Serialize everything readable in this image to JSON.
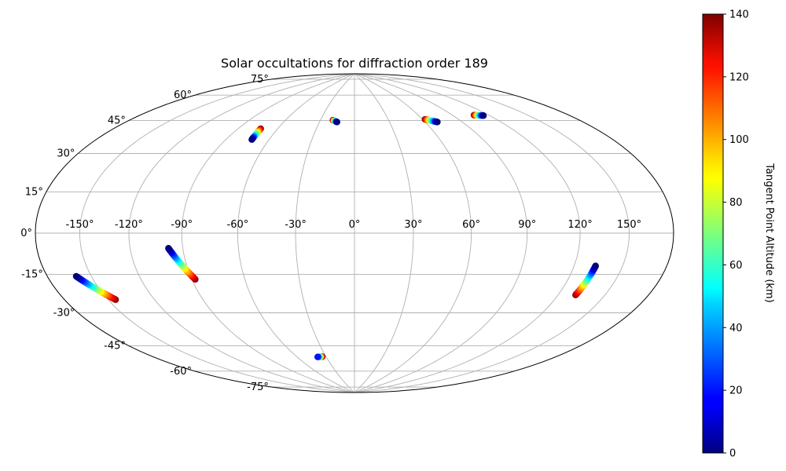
{
  "chart_data": {
    "type": "scatter",
    "projection": "hammer",
    "title": "Solar occultations for diffraction order 189",
    "grid": true,
    "lon_ticks": [
      -150,
      -120,
      -90,
      -60,
      -30,
      0,
      30,
      60,
      90,
      120,
      150
    ],
    "lon_tick_labels": [
      "-150°",
      "-120°",
      "-90°",
      "-60°",
      "-30°",
      "0°",
      "30°",
      "60°",
      "90°",
      "120°",
      "150°"
    ],
    "lat_ticks": [
      -75,
      -60,
      -45,
      -30,
      -15,
      0,
      15,
      30,
      45,
      60,
      75
    ],
    "lat_tick_labels": [
      "-75°",
      "-60°",
      "-45°",
      "-30°",
      "-15°",
      "0°",
      "15°",
      "30°",
      "45°",
      "60°",
      "75°"
    ],
    "colorbar": {
      "label": "Tangent Point Altitude (km)",
      "colormap": "jet",
      "min": 0,
      "max": 140,
      "ticks": [
        0,
        20,
        40,
        60,
        80,
        100,
        120,
        140
      ],
      "tick_labels": [
        "0",
        "20",
        "40",
        "60",
        "80",
        "100",
        "120",
        "140"
      ]
    },
    "occultations": [
      {
        "start": {
          "lon": -160,
          "lat": -17,
          "alt": 0
        },
        "end": {
          "lon": -145,
          "lat": -28,
          "alt": 140
        }
      },
      {
        "start": {
          "lon": -98,
          "lat": -7,
          "alt": 0
        },
        "end": {
          "lon": -88,
          "lat": -22,
          "alt": 140
        }
      },
      {
        "start": {
          "lon": -72,
          "lat": 47,
          "alt": 0
        },
        "end": {
          "lon": -73,
          "lat": 53,
          "alt": 140
        }
      },
      {
        "start": {
          "lon": -15,
          "lat": 59,
          "alt": 0
        },
        "end": {
          "lon": -19,
          "lat": 60,
          "alt": 140
        }
      },
      {
        "start": {
          "lon": -39,
          "lat": -66,
          "alt": 20
        },
        "end": {
          "lon": -34,
          "lat": -66,
          "alt": 140
        }
      },
      {
        "start": {
          "lon": 70,
          "lat": 57,
          "alt": 0
        },
        "end": {
          "lon": 62,
          "lat": 59,
          "alt": 140
        }
      },
      {
        "start": {
          "lon": 115,
          "lat": 57,
          "alt": 0
        },
        "end": {
          "lon": 108,
          "lat": 58,
          "alt": 140
        }
      },
      {
        "start": {
          "lon": 133,
          "lat": -14,
          "alt": 0
        },
        "end": {
          "lon": 131,
          "lat": -27,
          "alt": 140
        }
      }
    ]
  }
}
